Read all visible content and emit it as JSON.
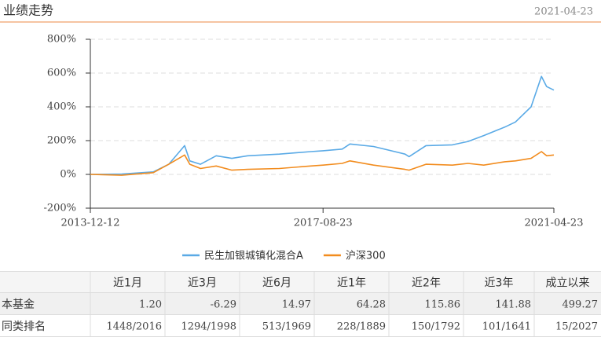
{
  "header": {
    "title": "业绩走势",
    "date": "2021-04-23"
  },
  "chart_data": {
    "type": "line",
    "x": [
      "2013-12-12",
      "2014-06-12",
      "2014-12-12",
      "2015-03-12",
      "2015-06-12",
      "2015-07-12",
      "2015-09-12",
      "2015-12-12",
      "2016-03-12",
      "2016-06-12",
      "2016-12-12",
      "2017-06-12",
      "2017-08-23",
      "2017-12-12",
      "2018-01-26",
      "2018-06-12",
      "2018-12-12",
      "2019-01-04",
      "2019-04-12",
      "2019-09-12",
      "2019-12-12",
      "2020-03-12",
      "2020-07-12",
      "2020-09-12",
      "2020-12-12",
      "2021-02-10",
      "2021-03-12",
      "2021-04-23"
    ],
    "series": [
      {
        "name": "民生加银城镇化混合A",
        "color": "#5aaae6",
        "values": [
          0,
          2,
          15,
          60,
          170,
          80,
          60,
          110,
          95,
          110,
          120,
          135,
          140,
          150,
          180,
          165,
          120,
          105,
          170,
          175,
          195,
          230,
          280,
          310,
          400,
          580,
          520,
          499.27
        ]
      },
      {
        "name": "沪深300",
        "color": "#f28c1e",
        "values": [
          0,
          -5,
          10,
          60,
          115,
          60,
          35,
          50,
          25,
          30,
          35,
          50,
          55,
          65,
          80,
          55,
          30,
          25,
          60,
          55,
          65,
          55,
          75,
          80,
          95,
          135,
          110,
          115
        ]
      }
    ],
    "xlim": [
      "2013-12-12",
      "2021-04-23"
    ],
    "xticks": [
      "2013-12-12",
      "2017-08-23",
      "2021-04-23"
    ],
    "ylim": [
      -200,
      800
    ],
    "yticks": [
      {
        "value": -200,
        "label": "-200%"
      },
      {
        "value": 0,
        "label": "0%"
      },
      {
        "value": 200,
        "label": "200%"
      },
      {
        "value": 400,
        "label": "400%"
      },
      {
        "value": 600,
        "label": "600%"
      },
      {
        "value": 800,
        "label": "800%"
      }
    ],
    "grid": true
  },
  "table": {
    "header": [
      "近1月",
      "近3月",
      "近6月",
      "近1年",
      "近2年",
      "近3年",
      "成立以来"
    ],
    "rows": [
      [
        "本基金",
        "1.20",
        "-6.29",
        "14.97",
        "64.28",
        "115.86",
        "141.88",
        "499.27"
      ],
      [
        "同类排名",
        "1448/2016",
        "1294/1998",
        "513/1969",
        "228/1889",
        "150/1792",
        "101/1641",
        "15/2027"
      ]
    ]
  }
}
